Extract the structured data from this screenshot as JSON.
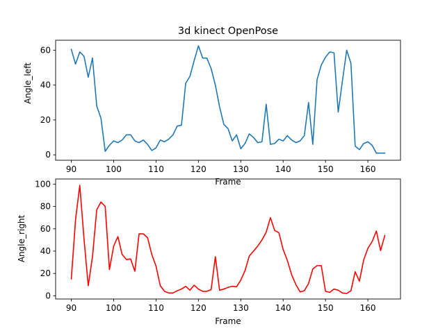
{
  "figure": {
    "background": "#ffffff"
  },
  "chart_data": [
    {
      "type": "line",
      "title": "3d kinect OpenPose",
      "xlabel": "Frame",
      "ylabel": "Angle_left",
      "xlim": [
        86.3,
        167.7
      ],
      "ylim": [
        -3.1,
        65.7
      ],
      "xticks": [
        90,
        100,
        110,
        120,
        130,
        140,
        150,
        160
      ],
      "yticks": [
        0,
        20,
        40,
        60
      ],
      "grid": false,
      "color": "#1f77b4",
      "x": [
        90,
        91,
        92,
        93,
        94,
        95,
        96,
        97,
        98,
        99,
        100,
        101,
        102,
        103,
        104,
        105,
        106,
        107,
        108,
        109,
        110,
        111,
        112,
        113,
        114,
        115,
        116,
        117,
        118,
        119,
        120,
        121,
        122,
        123,
        124,
        125,
        126,
        127,
        128,
        129,
        130,
        131,
        132,
        133,
        134,
        135,
        136,
        137,
        138,
        139,
        140,
        141,
        142,
        143,
        144,
        145,
        146,
        147,
        148,
        149,
        150,
        151,
        152,
        153,
        154,
        155,
        156,
        157,
        158,
        159,
        160,
        161,
        162,
        163,
        164
      ],
      "y": [
        60.5,
        52.0,
        59.0,
        56.5,
        44.5,
        55.5,
        28.0,
        21.0,
        2.0,
        5.5,
        8.0,
        7.0,
        8.5,
        11.5,
        11.5,
        8.0,
        7.0,
        8.5,
        6.0,
        2.5,
        4.0,
        8.5,
        7.5,
        9.0,
        11.5,
        16.5,
        17.0,
        41.0,
        45.0,
        54.0,
        62.5,
        55.5,
        55.5,
        49.5,
        40.0,
        27.5,
        17.5,
        15.0,
        8.0,
        11.5,
        3.5,
        6.5,
        12.0,
        10.0,
        7.0,
        7.5,
        29.0,
        6.0,
        6.5,
        9.0,
        8.0,
        11.0,
        8.5,
        7.0,
        8.0,
        11.0,
        30.0,
        6.0,
        43.0,
        51.5,
        56.0,
        59.0,
        58.5,
        24.5,
        42.5,
        60.0,
        52.5,
        5.0,
        3.0,
        6.5,
        7.5,
        5.5,
        1.0,
        1.0,
        1.0
      ]
    },
    {
      "type": "line",
      "title": "",
      "xlabel": "Frame",
      "ylabel": "Angle_right",
      "xlim": [
        86.3,
        167.7
      ],
      "ylim": [
        -2.9,
        104.6
      ],
      "xticks": [
        90,
        100,
        110,
        120,
        130,
        140,
        150,
        160
      ],
      "yticks": [
        0,
        20,
        40,
        60,
        80,
        100
      ],
      "grid": false,
      "color": "#ff0000",
      "x": [
        90,
        91,
        92,
        93,
        94,
        95,
        96,
        97,
        98,
        99,
        100,
        101,
        102,
        103,
        104,
        105,
        106,
        107,
        108,
        109,
        110,
        111,
        112,
        113,
        114,
        115,
        116,
        117,
        118,
        119,
        120,
        121,
        122,
        123,
        124,
        125,
        126,
        127,
        128,
        129,
        130,
        131,
        132,
        133,
        134,
        135,
        136,
        137,
        138,
        139,
        140,
        141,
        142,
        143,
        144,
        145,
        146,
        147,
        148,
        149,
        150,
        151,
        152,
        153,
        154,
        155,
        156,
        157,
        158,
        159,
        160,
        161,
        162,
        163,
        164
      ],
      "y": [
        15.0,
        68.0,
        99.0,
        51.0,
        9.0,
        35.0,
        77.0,
        84.0,
        80.0,
        23.5,
        44.5,
        53.0,
        37.0,
        32.5,
        33.0,
        22.0,
        55.5,
        55.5,
        52.0,
        37.0,
        26.5,
        9.0,
        4.0,
        2.5,
        2.5,
        4.5,
        6.0,
        8.5,
        5.0,
        9.5,
        6.0,
        4.0,
        4.0,
        5.5,
        35.0,
        5.0,
        6.0,
        7.5,
        8.5,
        8.0,
        14.0,
        22.5,
        35.5,
        40.0,
        44.5,
        50.0,
        57.0,
        70.0,
        58.5,
        56.5,
        41.5,
        31.5,
        19.0,
        10.0,
        3.5,
        4.5,
        11.0,
        24.0,
        27.0,
        27.0,
        4.0,
        3.0,
        6.0,
        5.0,
        2.5,
        2.0,
        4.5,
        21.5,
        13.0,
        32.0,
        42.5,
        48.5,
        58.0,
        40.5,
        54.0
      ]
    }
  ]
}
